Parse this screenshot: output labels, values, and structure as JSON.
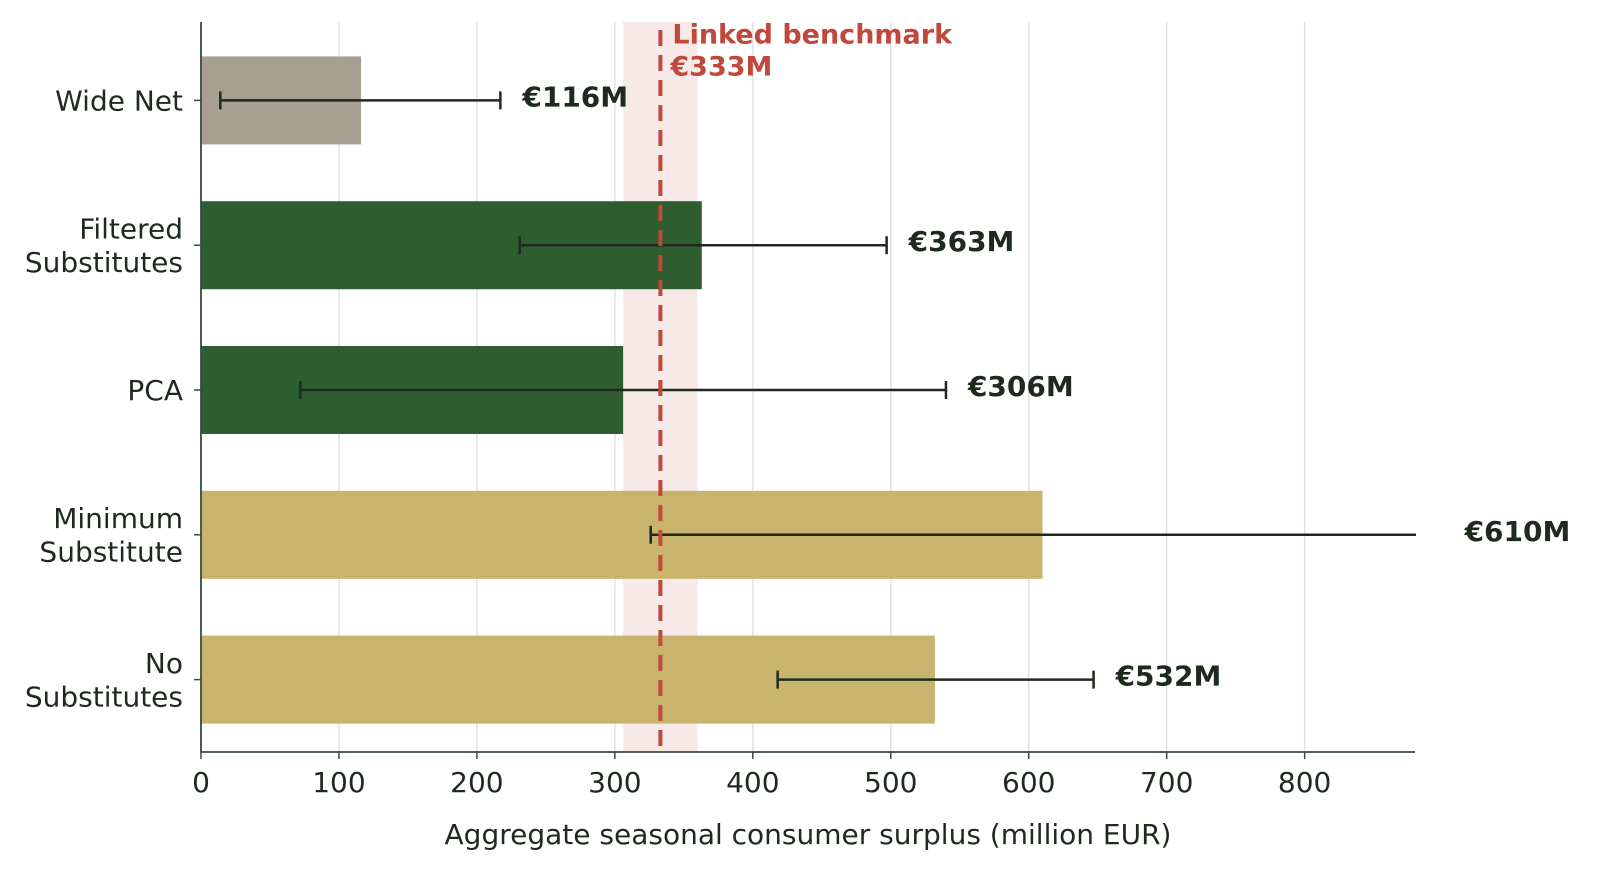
{
  "chart_data": {
    "type": "barh",
    "categories": [
      "Wide Net",
      "Filtered\nSubstitutes",
      "PCA",
      "Minimum\nSubstitute",
      "No\nSubstitutes"
    ],
    "values": [
      116,
      363,
      306,
      610,
      532
    ],
    "value_labels": [
      "€116M",
      "€363M",
      "€306M",
      "€610M",
      "€532M"
    ],
    "ci": [
      [
        14,
        217
      ],
      [
        231,
        497
      ],
      [
        72,
        540
      ],
      [
        326,
        900
      ],
      [
        418,
        647
      ]
    ],
    "colors": [
      "#a89f91",
      "#2e5e30",
      "#2e5e30",
      "#c8b46c",
      "#c8b46c"
    ],
    "xlabel": "Aggregate seasonal consumer surplus (million EUR)",
    "xlim": [
      0,
      880
    ],
    "xticks": [
      0,
      100,
      200,
      300,
      400,
      500,
      600,
      700,
      800
    ],
    "grid": true,
    "benchmark": {
      "label": "Linked benchmark",
      "value": 333,
      "value_label": "€333M",
      "band": [
        306,
        360
      ],
      "color": "#c0483c"
    }
  }
}
